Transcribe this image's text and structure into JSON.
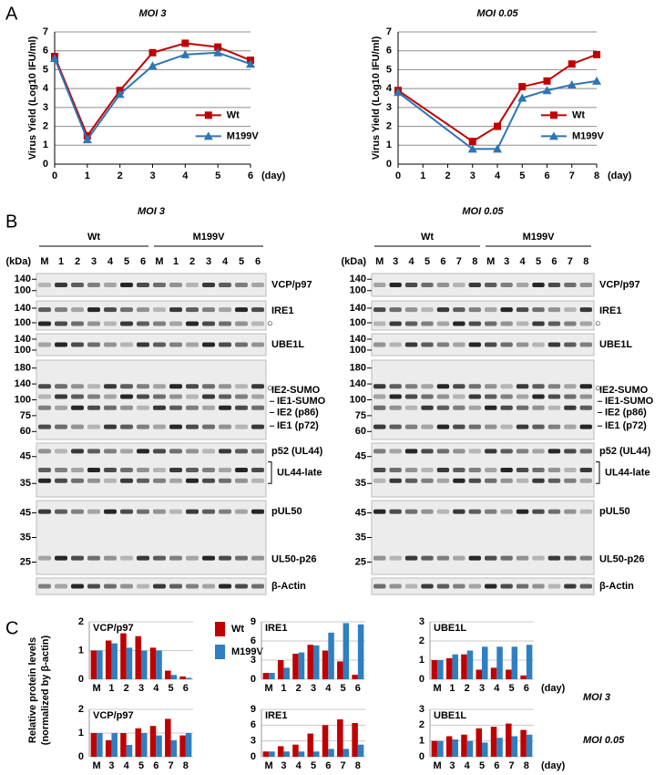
{
  "panel_labels": [
    "A",
    "B",
    "C"
  ],
  "chart_data": [
    {
      "type": "line",
      "title": "MOI 3",
      "ylabel": "Virus Yield (Log10 IFU/ml)",
      "xlabel": "(day)",
      "x": [
        0,
        1,
        2,
        3,
        4,
        5,
        6
      ],
      "xlim": [
        0,
        6
      ],
      "xticks": [
        0,
        1,
        2,
        3,
        4,
        5,
        6
      ],
      "ylim": [
        0,
        7
      ],
      "yticks": [
        0,
        1,
        2,
        3,
        4,
        5,
        6,
        7
      ],
      "grid": true,
      "legend": "right",
      "series": [
        {
          "name": "Wt",
          "color": "#c00000",
          "marker": "square",
          "values": [
            5.7,
            1.5,
            3.9,
            5.9,
            6.4,
            6.2,
            5.5
          ]
        },
        {
          "name": "M199V",
          "color": "#2e75b6",
          "marker": "triangle",
          "values": [
            5.6,
            1.3,
            3.7,
            5.2,
            5.8,
            5.9,
            5.3
          ]
        }
      ]
    },
    {
      "type": "line",
      "title": "MOI 0.05",
      "ylabel": "Virus Yield (Log10 IFU/ml)",
      "xlabel": "(day)",
      "x": [
        0,
        3,
        4,
        5,
        6,
        7,
        8
      ],
      "xlim": [
        0,
        8
      ],
      "xticks": [
        0,
        1,
        2,
        3,
        4,
        5,
        6,
        7,
        8
      ],
      "ylim": [
        0,
        7
      ],
      "yticks": [
        0,
        1,
        2,
        3,
        4,
        5,
        6,
        7
      ],
      "grid": true,
      "legend": "right",
      "series": [
        {
          "name": "Wt",
          "color": "#c00000",
          "marker": "square",
          "values": [
            3.9,
            1.2,
            2.0,
            4.1,
            4.4,
            5.3,
            5.8
          ]
        },
        {
          "name": "M199V",
          "color": "#2e75b6",
          "marker": "triangle",
          "values": [
            3.8,
            0.8,
            0.8,
            3.5,
            3.9,
            4.2,
            4.4
          ]
        }
      ]
    },
    {
      "type": "bar",
      "title": "VCP/p97",
      "categories": [
        "M",
        "1",
        "2",
        "3",
        "4",
        "5",
        "6"
      ],
      "ylim": [
        0,
        2
      ],
      "yticks": [
        0,
        1,
        2
      ],
      "grid": true,
      "legend": "right",
      "series": [
        {
          "name": "Wt",
          "color": "#c00000",
          "values": [
            1.0,
            1.35,
            1.6,
            1.5,
            1.1,
            0.3,
            0.1
          ]
        },
        {
          "name": "M199V",
          "color": "#2f7fc1",
          "values": [
            1.0,
            1.25,
            1.1,
            1.0,
            1.0,
            0.15,
            0.05
          ]
        }
      ]
    },
    {
      "type": "bar",
      "title": "IRE1",
      "categories": [
        "M",
        "1",
        "2",
        "3",
        "4",
        "5",
        "6"
      ],
      "ylim": [
        0,
        9
      ],
      "yticks": [
        0,
        3,
        6,
        9
      ],
      "grid": true,
      "series": [
        {
          "color": "#c00000",
          "values": [
            1,
            3,
            4,
            5.4,
            4.5,
            2.8,
            0.7
          ]
        },
        {
          "color": "#2f7fc1",
          "values": [
            1,
            1.8,
            4.2,
            5.3,
            7.3,
            8.8,
            8.6
          ]
        }
      ]
    },
    {
      "type": "bar",
      "title": "UBE1L",
      "categories": [
        "M",
        "1",
        "2",
        "3",
        "4",
        "5",
        "6"
      ],
      "ylim": [
        0,
        3
      ],
      "yticks": [
        0,
        1,
        2,
        3
      ],
      "grid": true,
      "xlabel": "(day)",
      "series": [
        {
          "color": "#c00000",
          "values": [
            1,
            1.1,
            1.3,
            0.5,
            0.6,
            0.5,
            0.2
          ]
        },
        {
          "color": "#2f7fc1",
          "values": [
            1,
            1.3,
            1.5,
            1.7,
            1.7,
            1.7,
            1.8
          ]
        }
      ]
    },
    {
      "type": "bar",
      "title": "VCP/p97",
      "categories": [
        "M",
        "3",
        "4",
        "5",
        "6",
        "7",
        "8"
      ],
      "ylim": [
        0,
        2
      ],
      "yticks": [
        0,
        1,
        2
      ],
      "grid": true,
      "series": [
        {
          "color": "#c00000",
          "values": [
            1,
            0.7,
            1.0,
            1.2,
            1.3,
            1.6,
            0.9
          ]
        },
        {
          "color": "#2f7fc1",
          "values": [
            1,
            1.0,
            0.5,
            1.0,
            0.9,
            0.7,
            1.0
          ]
        }
      ]
    },
    {
      "type": "bar",
      "title": "IRE1",
      "categories": [
        "M",
        "3",
        "4",
        "5",
        "6",
        "7",
        "8"
      ],
      "ylim": [
        0,
        9
      ],
      "yticks": [
        0,
        3,
        6,
        9
      ],
      "grid": true,
      "series": [
        {
          "color": "#c00000",
          "values": [
            1,
            2,
            2.3,
            4.4,
            6,
            7.1,
            6.4
          ]
        },
        {
          "color": "#2f7fc1",
          "values": [
            1,
            1,
            1,
            1,
            1.5,
            1.5,
            2.3
          ]
        }
      ]
    },
    {
      "type": "bar",
      "title": "UBE1L",
      "categories": [
        "M",
        "3",
        "4",
        "5",
        "6",
        "7",
        "8"
      ],
      "ylim": [
        0,
        3
      ],
      "yticks": [
        0,
        1,
        2,
        3
      ],
      "grid": true,
      "xlabel": "(day)",
      "series": [
        {
          "color": "#c00000",
          "values": [
            1,
            1.3,
            1.4,
            1.8,
            1.9,
            2.1,
            1.7
          ]
        },
        {
          "color": "#2f7fc1",
          "values": [
            1,
            1.1,
            1.0,
            0.9,
            1.2,
            1.3,
            1.4
          ]
        }
      ]
    }
  ],
  "blots": [
    {
      "title": "MOI 3",
      "kda": "(kDa)",
      "groups": [
        {
          "name": "Wt",
          "lanes": [
            "M",
            "1",
            "2",
            "3",
            "4",
            "5",
            "6"
          ]
        },
        {
          "name": "M199V",
          "lanes": [
            "M",
            "1",
            "2",
            "3",
            "4",
            "5",
            "6"
          ]
        }
      ]
    },
    {
      "title": "MOI 0.05",
      "kda": "(kDa)",
      "groups": [
        {
          "name": "Wt",
          "lanes": [
            "M",
            "3",
            "4",
            "5",
            "6",
            "7",
            "8"
          ]
        },
        {
          "name": "M199V",
          "lanes": [
            "M",
            "3",
            "4",
            "5",
            "6",
            "7",
            "8"
          ]
        }
      ]
    }
  ],
  "strips": [
    {
      "markers": [
        140,
        100
      ],
      "labels": [
        "VCP/p97"
      ]
    },
    {
      "markers": [
        140,
        100
      ],
      "labels": [
        "IRE1"
      ],
      "symbol": "○"
    },
    {
      "markers": [
        140,
        100
      ],
      "labels": [
        "UBE1L"
      ]
    },
    {
      "markers": [
        180,
        140,
        100,
        75,
        60
      ],
      "labels": [
        "IE2-SUMO",
        "IE1-SUMO",
        "IE2 (p86)",
        "IE1 (p72)"
      ],
      "symbol": "○"
    },
    {
      "markers": [
        45,
        35
      ],
      "labels": [
        "p52 (UL44)",
        "UL44-late"
      ]
    },
    {
      "markers": [
        45,
        35,
        25
      ],
      "labels": [
        "pUL50",
        "UL50-p26"
      ]
    },
    {
      "markers": [],
      "labels": [
        "β-Actin"
      ]
    }
  ],
  "panel_c": {
    "ylabel": [
      "Relative protein levels",
      "(normalized by β-actin)"
    ],
    "rows": [
      "MOI 3",
      "MOI 0.05"
    ]
  }
}
